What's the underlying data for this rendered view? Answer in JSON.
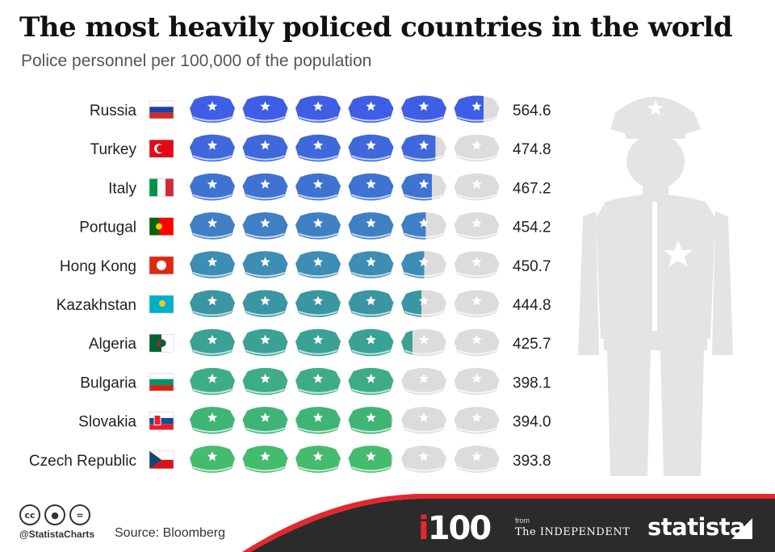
{
  "header": {
    "title": "The most heavily policed countries in the world",
    "subtitle": "Police personnel per 100,000 of the population"
  },
  "chart_data": {
    "type": "pictogram",
    "unit_per_icon": 100,
    "icons_per_row": 6,
    "categories": [
      "Russia",
      "Turkey",
      "Italy",
      "Portugal",
      "Hong Kong",
      "Kazakhstan",
      "Algeria",
      "Bulgaria",
      "Slovakia",
      "Czech Republic"
    ],
    "values": [
      564.6,
      474.8,
      467.2,
      454.2,
      450.7,
      444.8,
      425.7,
      398.1,
      394.0,
      393.8
    ],
    "value_labels": [
      "564.6",
      "474.8",
      "467.2",
      "454.2",
      "450.7",
      "444.8",
      "425.7",
      "398.1",
      "394.0",
      "393.8"
    ],
    "row_colors": [
      "#3f5ee5",
      "#3f68dc",
      "#3f73d2",
      "#3f80c4",
      "#3d8db5",
      "#3a96a3",
      "#3aa295",
      "#3ead86",
      "#40b477",
      "#45bb6e"
    ],
    "empty_color": "#dcdcdc",
    "flags": [
      "russia-flag",
      "turkey-flag",
      "italy-flag",
      "portugal-flag",
      "hong-kong-flag",
      "kazakhstan-flag",
      "algeria-flag",
      "bulgaria-flag",
      "slovakia-flag",
      "czech-republic-flag"
    ]
  },
  "footer": {
    "handle": "@StatistaCharts",
    "source": "Source: Bloomberg",
    "partner_i": "i",
    "partner_100": "100",
    "partner_from": "from",
    "partner_name": "The INDEPENDENT",
    "brand": "statista",
    "icons": [
      "cc-icon",
      "by-icon",
      "nd-icon"
    ],
    "band_color": "#2b2b2b",
    "accent_color": "#e8262e"
  }
}
